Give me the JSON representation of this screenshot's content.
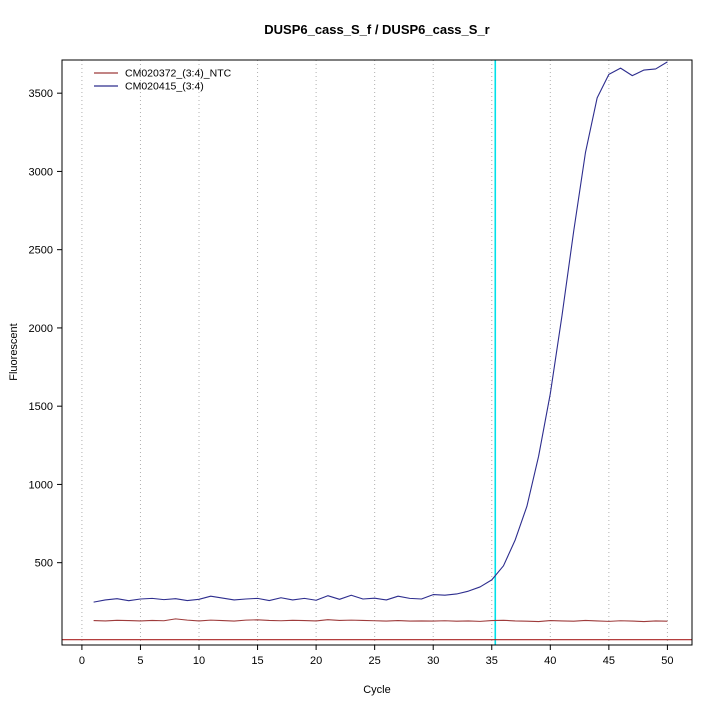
{
  "chart_data": {
    "type": "line",
    "title": "DUSP6_cass_S_f / DUSP6_cass_S_r",
    "xlabel": "Cycle",
    "ylabel": "Fluorescent",
    "xlim": [
      -1.7,
      52.1
    ],
    "ylim": [
      -26,
      3712
    ],
    "x_ticks": [
      0,
      5,
      10,
      15,
      20,
      25,
      30,
      35,
      40,
      45,
      50
    ],
    "y_ticks": [
      500,
      1000,
      1500,
      2000,
      2500,
      3000,
      3500
    ],
    "grid": "vertical-dotted",
    "grid_color": "#b0b0b0",
    "legend_position": "top-left",
    "x": [
      1,
      2,
      3,
      4,
      5,
      6,
      7,
      8,
      9,
      10,
      11,
      12,
      13,
      14,
      15,
      16,
      17,
      18,
      19,
      20,
      21,
      22,
      23,
      24,
      25,
      26,
      27,
      28,
      29,
      30,
      31,
      32,
      33,
      34,
      35,
      36,
      37,
      38,
      39,
      40,
      41,
      42,
      43,
      44,
      45,
      46,
      47,
      48,
      49,
      50
    ],
    "series": [
      {
        "name": "CM020372_(3:4)_NTC",
        "color": "#9e3b3b",
        "values": [
          130,
          128,
          132,
          130,
          128,
          131,
          129,
          141,
          133,
          128,
          133,
          130,
          127,
          133,
          135,
          131,
          129,
          132,
          130,
          128,
          136,
          131,
          133,
          131,
          129,
          127,
          130,
          127,
          128,
          127,
          129,
          126,
          128,
          125,
          130,
          132,
          128,
          126,
          124,
          130,
          128,
          126,
          131,
          128,
          125,
          129,
          127,
          124,
          128,
          126
        ]
      },
      {
        "name": "CM020415_(3:4)",
        "color": "#2d2d8e",
        "values": [
          248,
          262,
          270,
          257,
          268,
          272,
          264,
          270,
          258,
          266,
          286,
          274,
          262,
          268,
          272,
          258,
          276,
          262,
          272,
          260,
          289,
          266,
          292,
          268,
          273,
          262,
          286,
          272,
          268,
          296,
          292,
          300,
          318,
          345,
          390,
          480,
          645,
          860,
          1180,
          1580,
          2080,
          2620,
          3120,
          3470,
          3620,
          3660,
          3612,
          3648,
          3655,
          3700
        ]
      }
    ],
    "threshold_line": {
      "y": 8,
      "color": "#aa2222"
    },
    "ct_line": {
      "x": 35.3,
      "color": "#00e0e8"
    }
  }
}
